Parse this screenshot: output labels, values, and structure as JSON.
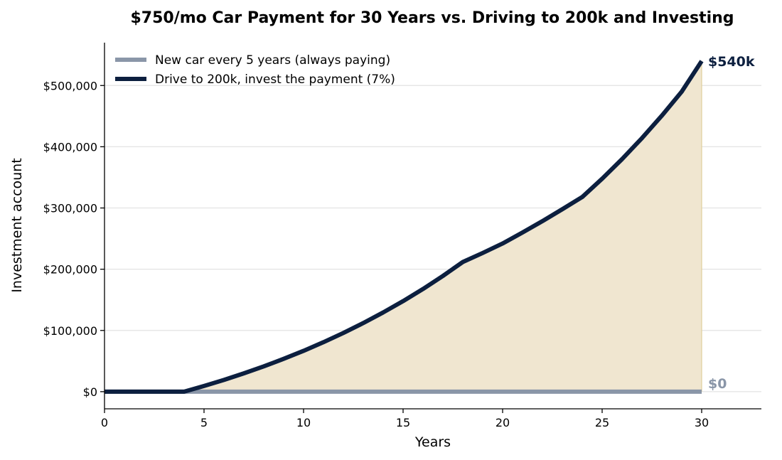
{
  "chart_data": {
    "type": "line",
    "title": "$750/mo Car Payment for 30 Years vs. Driving to 200k and Investing",
    "xlabel": "Years",
    "ylabel": "Investment account",
    "xlim": [
      0,
      33
    ],
    "ylim": [
      -28000,
      570000
    ],
    "xticks": [
      0,
      5,
      10,
      15,
      20,
      25,
      30
    ],
    "yticks": [
      0,
      100000,
      200000,
      300000,
      400000,
      500000
    ],
    "ytick_labels": [
      "$0",
      "$100,000",
      "$200,000",
      "$300,000",
      "$400,000",
      "$500,000"
    ],
    "grid": "horizontal",
    "legend_position": "top-left",
    "series": [
      {
        "name": "New car every 5 years (always paying)",
        "color": "#8a96a8",
        "x": [
          0,
          30
        ],
        "y": [
          0,
          0
        ],
        "end_label": "$0"
      },
      {
        "name": "Drive to 200k, invest the payment (7%)",
        "color": "#0c1f3f",
        "fill": "#f0e6d0",
        "x": [
          0,
          1,
          2,
          3,
          4,
          5,
          6,
          7,
          8,
          9,
          10,
          11,
          12,
          13,
          14,
          15,
          16,
          17,
          18,
          19,
          20,
          21,
          22,
          23,
          24,
          25,
          26,
          27,
          28,
          29,
          30
        ],
        "y": [
          0,
          0,
          0,
          0,
          0,
          9300,
          19200,
          29900,
          41300,
          53600,
          66700,
          80800,
          95900,
          112100,
          129400,
          147900,
          167700,
          189000,
          211800,
          226500,
          242000,
          260000,
          278500,
          298000,
          317900,
          347800,
          379800,
          414100,
          450800,
          490100,
          540000
        ],
        "end_label": "$540k"
      }
    ]
  }
}
